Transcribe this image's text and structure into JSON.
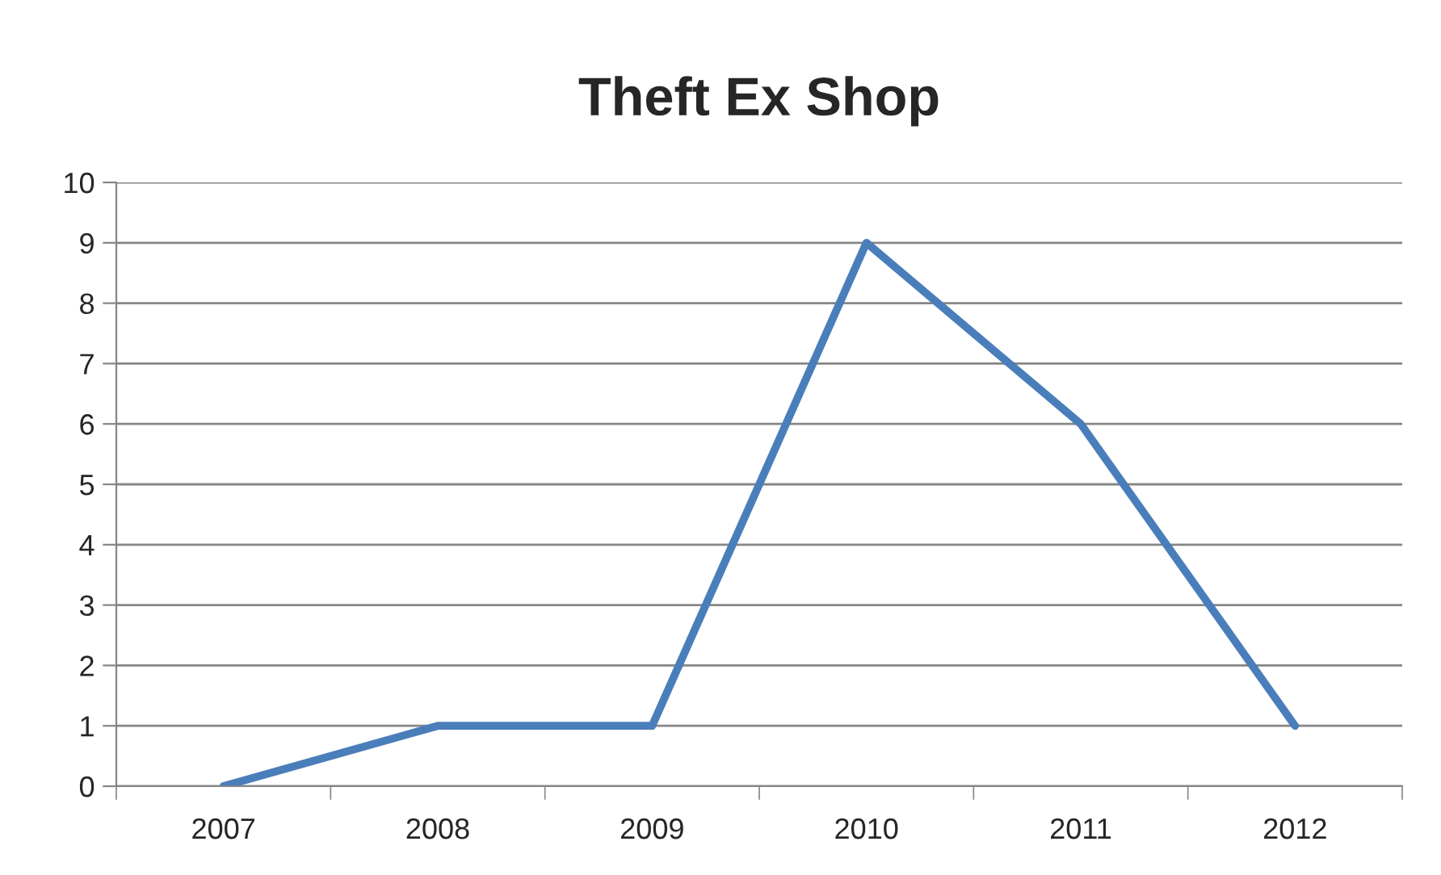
{
  "chart_data": {
    "type": "line",
    "title": "Theft Ex Shop",
    "categories": [
      "2007",
      "2008",
      "2009",
      "2010",
      "2011",
      "2012"
    ],
    "series": [
      {
        "color": "#4a7ebb",
        "values": [
          0,
          1,
          1,
          9,
          6,
          1
        ]
      }
    ],
    "ylim": [
      0,
      10
    ],
    "yticks": [
      0,
      1,
      2,
      3,
      4,
      5,
      6,
      7,
      8,
      9,
      10
    ],
    "grid": "y",
    "marker": "none",
    "line_style": "solid"
  }
}
